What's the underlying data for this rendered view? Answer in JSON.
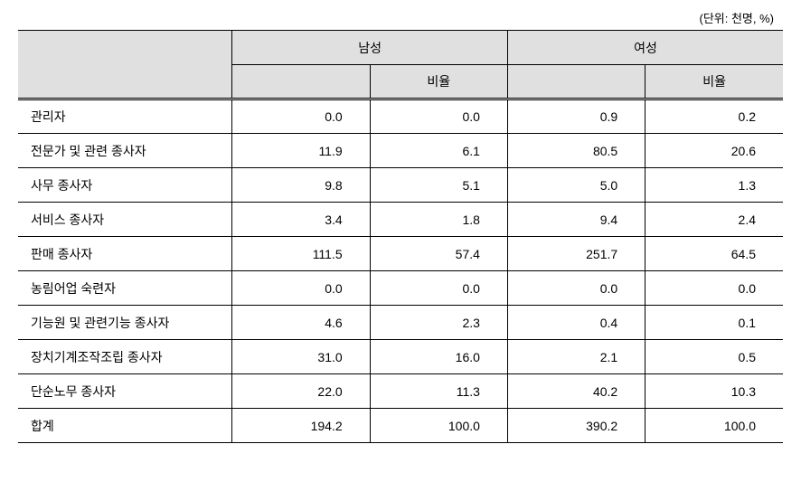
{
  "unit_label": "(단위: 천명, %)",
  "table": {
    "type": "table",
    "background_color": "#ffffff",
    "header_bg": "#e0e0e0",
    "border_color": "#000000",
    "font_size": 14,
    "unit_font_size": 13,
    "columns": {
      "label_width_pct": 28,
      "num_width_pct": 18
    },
    "header": {
      "group_male": "남성",
      "group_female": "여성",
      "sub_ratio": "비율"
    },
    "rows": [
      {
        "label": "관리자",
        "m_val": "0.0",
        "m_ratio": "0.0",
        "f_val": "0.9",
        "f_ratio": "0.2"
      },
      {
        "label": "전문가 및 관련 종사자",
        "m_val": "11.9",
        "m_ratio": "6.1",
        "f_val": "80.5",
        "f_ratio": "20.6"
      },
      {
        "label": "사무 종사자",
        "m_val": "9.8",
        "m_ratio": "5.1",
        "f_val": "5.0",
        "f_ratio": "1.3"
      },
      {
        "label": "서비스 종사자",
        "m_val": "3.4",
        "m_ratio": "1.8",
        "f_val": "9.4",
        "f_ratio": "2.4"
      },
      {
        "label": "판매 종사자",
        "m_val": "111.5",
        "m_ratio": "57.4",
        "f_val": "251.7",
        "f_ratio": "64.5"
      },
      {
        "label": "농림어업 숙련자",
        "m_val": "0.0",
        "m_ratio": "0.0",
        "f_val": "0.0",
        "f_ratio": "0.0"
      },
      {
        "label": "기능원 및 관련기능 종사자",
        "m_val": "4.6",
        "m_ratio": "2.3",
        "f_val": "0.4",
        "f_ratio": "0.1"
      },
      {
        "label": "장치기계조작조립 종사자",
        "m_val": "31.0",
        "m_ratio": "16.0",
        "f_val": "2.1",
        "f_ratio": "0.5"
      },
      {
        "label": "단순노무 종사자",
        "m_val": "22.0",
        "m_ratio": "11.3",
        "f_val": "40.2",
        "f_ratio": "10.3"
      },
      {
        "label": "합계",
        "m_val": "194.2",
        "m_ratio": "100.0",
        "f_val": "390.2",
        "f_ratio": "100.0"
      }
    ]
  }
}
